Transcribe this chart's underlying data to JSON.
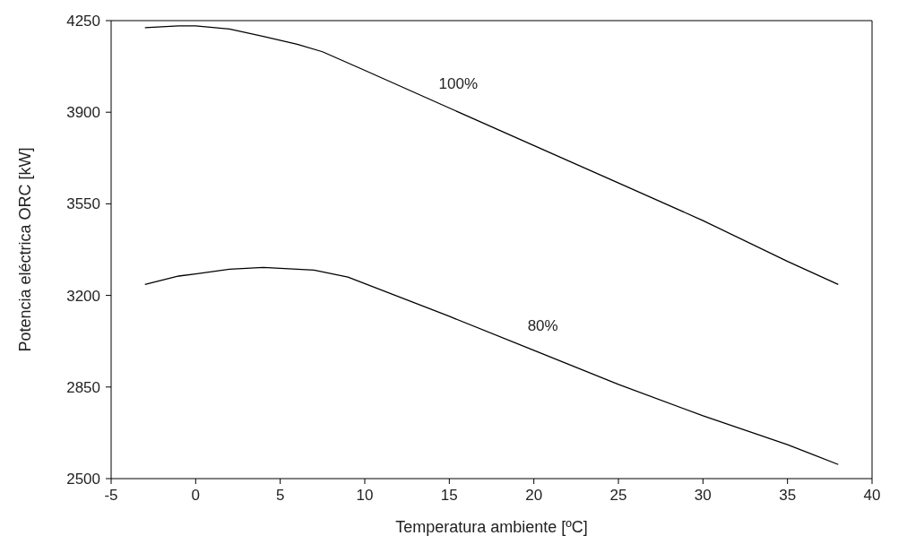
{
  "chart_data": {
    "type": "line",
    "xlabel": "Temperatura ambiente [ºC]",
    "ylabel": "Potencia eléctrica ORC [kW]",
    "xlim": [
      -5,
      40
    ],
    "xticks": [
      -5,
      0,
      5,
      10,
      15,
      20,
      25,
      30,
      35,
      40
    ],
    "ylim": [
      2500,
      4250
    ],
    "yticks": [
      2500,
      2850,
      3200,
      3550,
      3900,
      4250
    ],
    "marker": "none",
    "series": [
      {
        "name": "100%",
        "color": "#000000",
        "x": [
          -3,
          -1,
          0,
          2,
          4,
          6,
          7.5,
          10,
          15,
          20,
          25,
          30,
          35,
          38
        ],
        "values": [
          4223,
          4230,
          4230,
          4218,
          4190,
          4160,
          4131,
          4060,
          3916,
          3773,
          3630,
          3486,
          3330,
          3242
        ]
      },
      {
        "name": "80%",
        "color": "#000000",
        "x": [
          -3,
          -1,
          0,
          2,
          4,
          7,
          9,
          15,
          20,
          25,
          30,
          35,
          38
        ],
        "values": [
          3242,
          3274,
          3282,
          3300,
          3307,
          3297,
          3270,
          3120,
          2990,
          2860,
          2740,
          2630,
          2554
        ]
      }
    ]
  }
}
